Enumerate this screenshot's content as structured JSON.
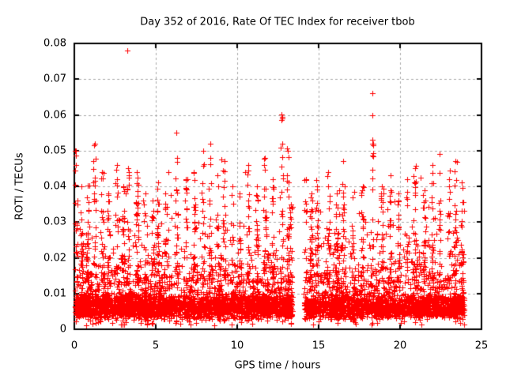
{
  "chart_data": {
    "type": "scatter",
    "title": "Day 352 of 2016, Rate Of TEC Index for receiver tbob",
    "xlabel": "GPS time / hours",
    "ylabel": "ROTI / TECUs",
    "xlim": [
      0,
      25
    ],
    "ylim": [
      0,
      0.08
    ],
    "x_ticks": [
      0,
      5,
      10,
      15,
      20,
      25
    ],
    "x_tick_labels": [
      "0",
      "5",
      "10",
      "15",
      "20",
      "25"
    ],
    "y_ticks": [
      0,
      0.01,
      0.02,
      0.03,
      0.04,
      0.05,
      0.06,
      0.07,
      0.08
    ],
    "y_tick_labels": [
      "0",
      "0.01",
      "0.02",
      "0.03",
      "0.04",
      "0.05",
      "0.06",
      "0.07",
      "0.08"
    ],
    "grid": true,
    "legend": "none",
    "marker": "plus",
    "marker_size_px": 7,
    "colors": {
      "marker": "#ff0000",
      "grid": "#a8a8a8",
      "axis": "#000000",
      "text": "#000000",
      "background": "#ffffff"
    },
    "series": {
      "name": "ROTI",
      "time_range_hours": [
        0.05,
        23.95
      ],
      "data_gap_hours": [
        13.4,
        14.1
      ],
      "max_point": [
        3.26,
        0.078
      ],
      "baseline_band": {
        "y_floor": 0.0025,
        "solid_span": 0.0075,
        "tail_floor": 0.0035,
        "tail_mean": 0.0058,
        "n": 4200,
        "tail_fraction": 0.35,
        "under_floor_fraction": 0.02
      },
      "mid_band": {
        "y_floor": 0.008,
        "exp_mean": 0.0075,
        "n": 750
      },
      "spike_clusters": [
        [
          0.12,
          0.05
        ],
        [
          0.45,
          0.04
        ],
        [
          0.8,
          0.037
        ],
        [
          1.25,
          0.052
        ],
        [
          1.7,
          0.044
        ],
        [
          2.1,
          0.038
        ],
        [
          2.6,
          0.046
        ],
        [
          3.0,
          0.04
        ],
        [
          3.3,
          0.045
        ],
        [
          3.85,
          0.044
        ],
        [
          4.35,
          0.038
        ],
        [
          4.8,
          0.036
        ],
        [
          5.15,
          0.041
        ],
        [
          5.6,
          0.038
        ],
        [
          6.3,
          0.048
        ],
        [
          6.85,
          0.042
        ],
        [
          7.35,
          0.044
        ],
        [
          7.9,
          0.05
        ],
        [
          8.35,
          0.048
        ],
        [
          8.8,
          0.043
        ],
        [
          9.2,
          0.047
        ],
        [
          9.7,
          0.04
        ],
        [
          10.15,
          0.038
        ],
        [
          10.7,
          0.046
        ],
        [
          11.2,
          0.04
        ],
        [
          11.7,
          0.048
        ],
        [
          12.2,
          0.042
        ],
        [
          12.75,
          0.052
        ],
        [
          13.1,
          0.05
        ],
        [
          13.3,
          0.035
        ],
        [
          14.2,
          0.042
        ],
        [
          14.55,
          0.038
        ],
        [
          14.9,
          0.04
        ],
        [
          15.6,
          0.044
        ],
        [
          16.1,
          0.038
        ],
        [
          16.5,
          0.047
        ],
        [
          17.1,
          0.037
        ],
        [
          17.7,
          0.04
        ],
        [
          18.3,
          0.053
        ],
        [
          18.9,
          0.04
        ],
        [
          19.4,
          0.043
        ],
        [
          19.9,
          0.038
        ],
        [
          20.45,
          0.042
        ],
        [
          20.9,
          0.045
        ],
        [
          21.5,
          0.039
        ],
        [
          22.0,
          0.046
        ],
        [
          22.45,
          0.049
        ],
        [
          23.0,
          0.042
        ],
        [
          23.4,
          0.047
        ],
        [
          23.8,
          0.041
        ]
      ],
      "outliers": [
        [
          3.26,
          0.078
        ],
        [
          12.72,
          0.0585
        ],
        [
          12.74,
          0.0602
        ],
        [
          12.76,
          0.059
        ],
        [
          12.77,
          0.0595
        ],
        [
          18.3,
          0.066
        ],
        [
          18.32,
          0.06
        ],
        [
          6.27,
          0.055
        ],
        [
          8.35,
          0.052
        ],
        [
          1.25,
          0.052
        ],
        [
          0.07,
          0.05
        ],
        [
          0.1,
          0.046
        ],
        [
          13.05,
          0.0505
        ],
        [
          7.9,
          0.05
        ],
        [
          22.45,
          0.049
        ],
        [
          23.4,
          0.047
        ],
        [
          16.5,
          0.047
        ],
        [
          20.9,
          0.045
        ]
      ],
      "seed": 352
    }
  }
}
